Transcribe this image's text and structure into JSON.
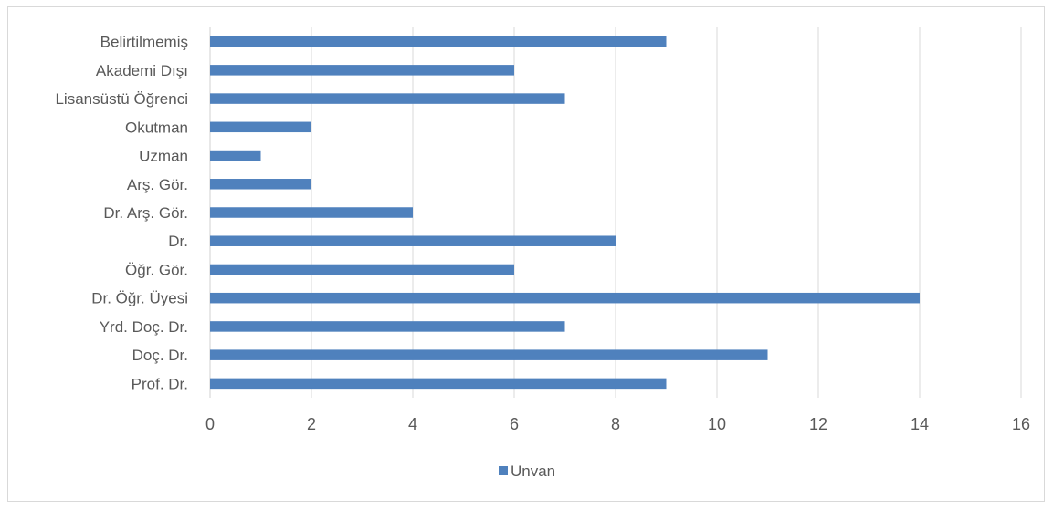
{
  "chart_data": {
    "type": "bar",
    "orientation": "horizontal",
    "categories": [
      "Prof. Dr.",
      "Doç. Dr.",
      "Yrd. Doç. Dr.",
      "Dr. Öğr. Üyesi",
      "Öğr. Gör.",
      "Dr.",
      "Dr. Arş. Gör.",
      "Arş. Gör.",
      "Uzman",
      "Okutman",
      "Lisansüstü Öğrenci",
      "Akademi Dışı",
      "Belirtilmemiş"
    ],
    "series": [
      {
        "name": "Unvan",
        "values": [
          9,
          11,
          7,
          14,
          6,
          8,
          4,
          2,
          1,
          2,
          7,
          6,
          9
        ]
      }
    ],
    "xlim": [
      0,
      16
    ],
    "xticks": [
      "0",
      "2",
      "4",
      "6",
      "8",
      "10",
      "12",
      "14",
      "16"
    ],
    "grid": true,
    "legend_position": "bottom",
    "colors": {
      "bar": "#4f81bd",
      "grid": "#d9d9d9",
      "text": "#595959"
    }
  }
}
